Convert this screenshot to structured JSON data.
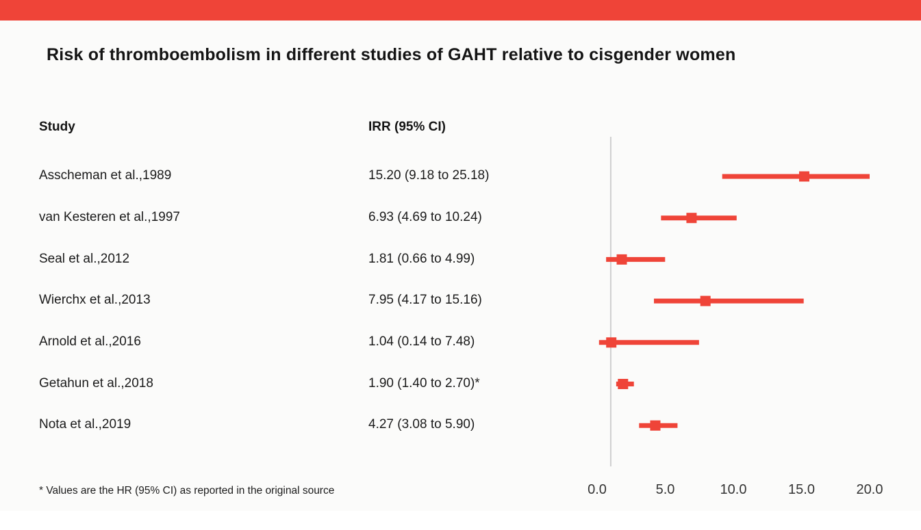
{
  "page": {
    "title": "Risk of thromboembolism in different studies of GAHT relative to cisgender women",
    "footnote": "* Values are the HR (95% CI) as reported in the original source",
    "accent_color": "#ef4438",
    "reference_line_color": "#cfcfcf"
  },
  "table": {
    "headers": {
      "study": "Study",
      "irr": "IRR (95% CI)"
    }
  },
  "chart_data": {
    "type": "forest",
    "title": "Risk of thromboembolism in different studies of GAHT relative to cisgender women",
    "xlabel": "",
    "ylabel": "",
    "xlim": [
      0,
      20
    ],
    "reference_line": 1.0,
    "marker_color": "#ef4438",
    "x_ticks": [
      0,
      5,
      10,
      15,
      20
    ],
    "x_tick_labels": [
      "0.0",
      "5.0",
      "10.0",
      "15.0",
      "20.0"
    ],
    "studies": [
      {
        "label": "Asscheman et al.,1989",
        "irr_text": "15.20 (9.18 to 25.18)",
        "irr": 15.2,
        "lo": 9.18,
        "hi": 25.18
      },
      {
        "label": "van Kesteren et al.,1997",
        "irr_text": "6.93 (4.69 to 10.24)",
        "irr": 6.93,
        "lo": 4.69,
        "hi": 10.24
      },
      {
        "label": "Seal et al.,2012",
        "irr_text": "1.81 (0.66 to 4.99)",
        "irr": 1.81,
        "lo": 0.66,
        "hi": 4.99
      },
      {
        "label": "Wierchx et al.,2013",
        "irr_text": "7.95 (4.17 to 15.16)",
        "irr": 7.95,
        "lo": 4.17,
        "hi": 15.16
      },
      {
        "label": "Arnold et al.,2016",
        "irr_text": "1.04 (0.14 to 7.48)",
        "irr": 1.04,
        "lo": 0.14,
        "hi": 7.48
      },
      {
        "label": "Getahun et al.,2018",
        "irr_text": "1.90 (1.40 to 2.70)*",
        "irr": 1.9,
        "lo": 1.4,
        "hi": 2.7
      },
      {
        "label": "Nota et al.,2019",
        "irr_text": "4.27 (3.08 to 5.90)",
        "irr": 4.27,
        "lo": 3.08,
        "hi": 5.9
      }
    ]
  }
}
